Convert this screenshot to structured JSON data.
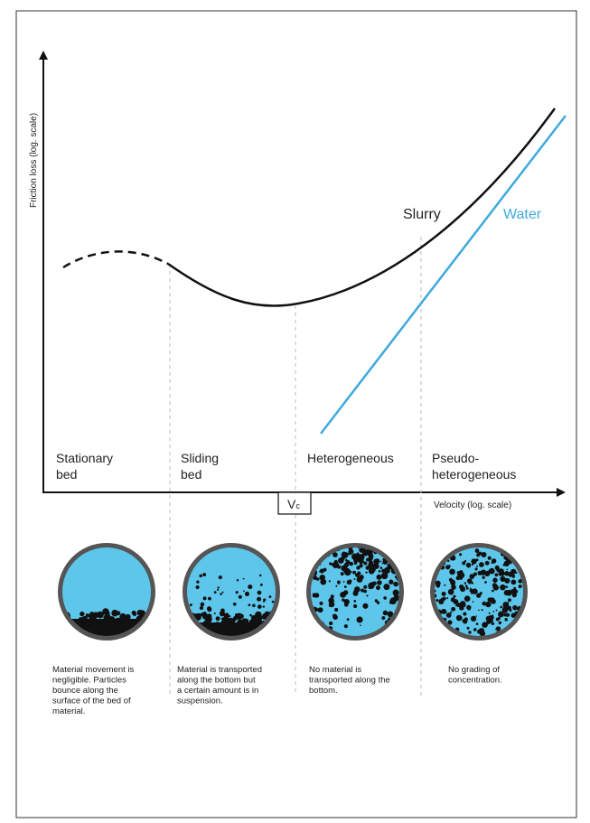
{
  "axes": {
    "y_label": "Friction loss (log. scale)",
    "x_label": "Velocity (log. scale)"
  },
  "curves": {
    "slurry": "Slurry",
    "water": "Water"
  },
  "critical_velocity": {
    "main": "V",
    "sub": "c"
  },
  "regions": [
    {
      "lines": [
        "Stationary",
        "bed"
      ]
    },
    {
      "lines": [
        "Sliding",
        "bed"
      ]
    },
    {
      "lines": [
        "Heterogeneous"
      ]
    },
    {
      "lines": [
        "Pseudo-",
        "heterogeneous"
      ]
    }
  ],
  "descriptions": [
    {
      "lines": [
        "Material movement is",
        "negligible. Particles",
        "bounce along the",
        "surface of the bed of",
        "material."
      ]
    },
    {
      "lines": [
        "Material is transported",
        "along the bottom but",
        "a certain amount is in",
        "suspension."
      ]
    },
    {
      "lines": [
        "No material is",
        "transported along the",
        "bottom."
      ]
    },
    {
      "lines": [
        "No grading of",
        "concentration."
      ]
    }
  ]
}
